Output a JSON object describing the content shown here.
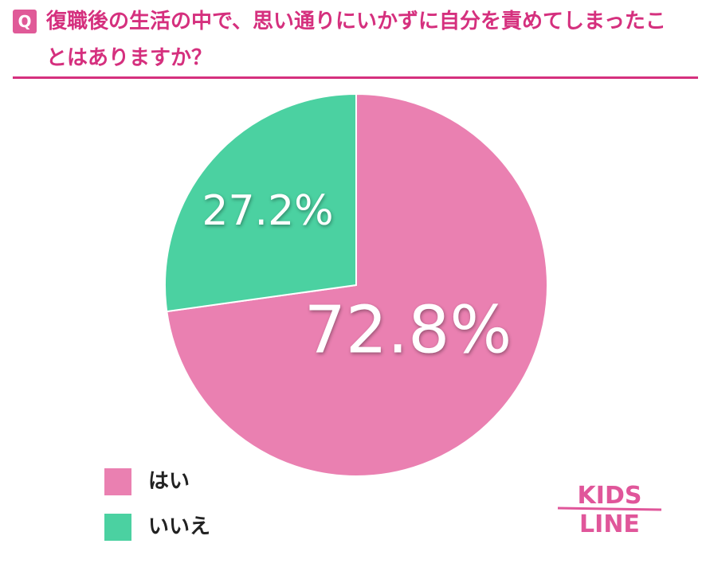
{
  "chart_data": {
    "type": "pie",
    "badge": "Q",
    "title": "復職後の生活の中で、思い通りにいかずに自分を責めてしまったことはありますか？",
    "categories": [
      "はい",
      "いいえ"
    ],
    "values": [
      72.8,
      27.2
    ],
    "value_labels": [
      "72.8%",
      "27.2%"
    ],
    "colors": [
      "#ea80b1",
      "#4bd1a1"
    ],
    "start_angle": 0,
    "direction": "clockwise"
  },
  "logo": {
    "line1": "KIDS",
    "line2": "LINE"
  }
}
